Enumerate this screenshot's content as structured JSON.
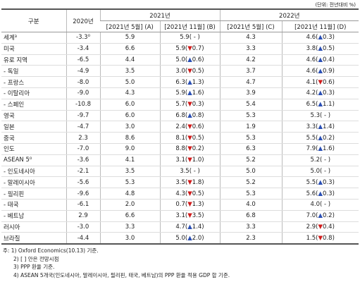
{
  "unit": "(단위: 전년대비 %)",
  "header": {
    "category": "구분",
    "y2020": "2020년",
    "y2021": "2021년",
    "y2022": "2022년",
    "a": "[2021년 5월] (A)",
    "b": "[2021년 11월] (B)",
    "c": "[2021년 5월] (C)",
    "d": "[2021년 11월] (D)"
  },
  "rows": [
    [
      "세계³",
      "-3.3⁰",
      "5.9",
      "5.9",
      "( - )",
      "4.3",
      "4.6",
      "(▲0.3)"
    ],
    [
      "미국",
      "-3.4",
      "6.6",
      "5.9",
      "(▼0.7)",
      "3.3",
      "3.8",
      "(▲0.5)"
    ],
    [
      "유로 지역",
      "-6.5",
      "4.4",
      "5.0",
      "(▲0.6)",
      "4.2",
      "4.6",
      "(▲0.4)"
    ],
    [
      "- 독일",
      "-4.9",
      "3.5",
      "3.0",
      "(▼0.5)",
      "3.7",
      "4.6",
      "(▲0.9)"
    ],
    [
      "- 프랑스",
      "-8.0",
      "5.0",
      "6.3",
      "(▲1.3)",
      "4.7",
      "4.1",
      "(▼0.6)"
    ],
    [
      "- 이탈리아",
      "-9.0",
      "4.3",
      "5.9",
      "(▲1.6)",
      "3.9",
      "4.2",
      "(▲0.3)"
    ],
    [
      "- 스페인",
      "-10.8",
      "6.0",
      "5.7",
      "(▼0.3)",
      "5.4",
      "6.5",
      "(▲1.1)"
    ],
    [
      "영국",
      "-9.7",
      "6.0",
      "6.8",
      "(▲0.8)",
      "5.3",
      "5.3",
      "( - )"
    ],
    [
      "일본",
      "-4.7",
      "3.0",
      "2.4",
      "(▼0.6)",
      "1.9",
      "3.3",
      "(▲1.4)"
    ],
    [
      "중국",
      "2.3",
      "8.6",
      "8.1",
      "(▼0.5)",
      "5.3",
      "5.5",
      "(▲0.2)"
    ],
    [
      "인도",
      "-7.0",
      "9.0",
      "8.8",
      "(▼0.2)",
      "6.3",
      "7.9",
      "(▲1.6)"
    ],
    [
      "ASEAN 5⁰",
      "-3.6",
      "4.1",
      "3.1",
      "(▼1.0)",
      "5.2",
      "5.2",
      "( - )"
    ],
    [
      "- 인도네시아",
      "-2.1",
      "3.5",
      "3.5",
      "( - )",
      "5.0",
      "5.0",
      "( - )"
    ],
    [
      "- 말레이시아",
      "-5.6",
      "5.3",
      "3.5",
      "(▼1.8)",
      "5.2",
      "5.5",
      "(▲0.3)"
    ],
    [
      "- 필리핀",
      "-9.6",
      "4.8",
      "4.3",
      "(▼0.5)",
      "5.3",
      "5.6",
      "(▲0.3)"
    ],
    [
      "- 태국",
      "-6.1",
      "2.0",
      "0.7",
      "(▼1.3)",
      "4.0",
      "4.0",
      "( - )"
    ],
    [
      "- 베트남",
      "2.9",
      "6.6",
      "3.1",
      "(▼3.5)",
      "6.8",
      "7.0",
      "(▲0.2)"
    ],
    [
      "러시아",
      "-3.0",
      "3.3",
      "4.7",
      "(▲1.4)",
      "3.3",
      "2.9",
      "(▼0.4)"
    ],
    [
      "브라질",
      "-4.4",
      "3.0",
      "5.0",
      "(▲2.0)",
      "2.3",
      "1.5",
      "(▼0.8)"
    ]
  ],
  "notes": [
    "주: 1) Oxford Economics(10.13) 기준.",
    "2) [ ] 안은 전망시점",
    "3) PPP 환율 기준.",
    "4) ASEAN 5개국(인도네시아, 말레이시아, 필리핀, 태국, 베트남)의 PPP 환율 적용 GDP 합 기준."
  ]
}
